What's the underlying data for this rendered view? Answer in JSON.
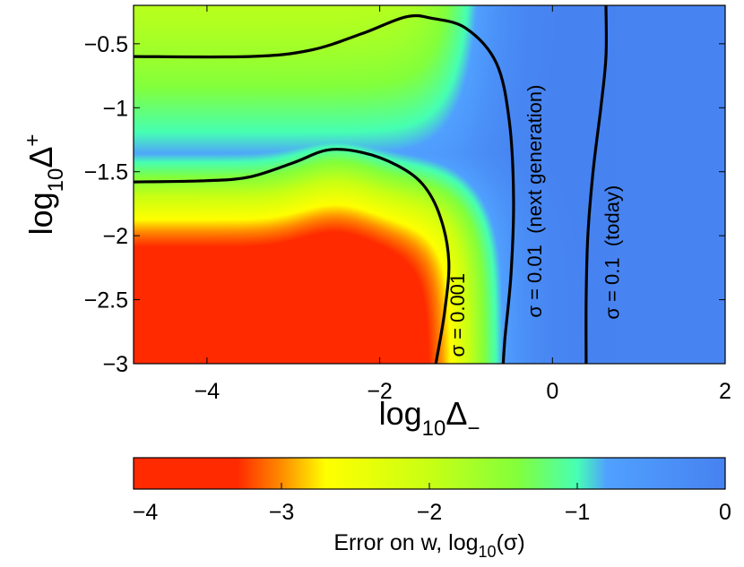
{
  "chart_data": {
    "type": "heatmap",
    "xlabel": {
      "base": "log",
      "sub": "10",
      "symbol": "Δ",
      "sup": "−"
    },
    "ylabel": {
      "base": "log",
      "sub": "10",
      "symbol": "Δ",
      "sup": "+"
    },
    "xlim": [
      -4.85,
      2
    ],
    "ylim": [
      -3,
      -0.2
    ],
    "x_ticks": [
      {
        "value": -4,
        "label": "−4"
      },
      {
        "value": -2,
        "label": "−2"
      },
      {
        "value": 0,
        "label": "0"
      },
      {
        "value": 2,
        "label": "2"
      }
    ],
    "y_ticks": [
      {
        "value": -0.5,
        "label": "−0.5"
      },
      {
        "value": -1,
        "label": "−1"
      },
      {
        "value": -1.5,
        "label": "−1.5"
      },
      {
        "value": -2,
        "label": "−2"
      },
      {
        "value": -2.5,
        "label": "−2.5"
      },
      {
        "value": -3,
        "label": "−3"
      }
    ],
    "colorbar": {
      "range": [
        -4,
        0
      ],
      "label": {
        "prefix": "Error on w, log",
        "sub": "10",
        "suffix": "(σ)"
      },
      "ticks": [
        {
          "value": -4,
          "label": "−4"
        },
        {
          "value": -3,
          "label": "−3"
        },
        {
          "value": -2,
          "label": "−2"
        },
        {
          "value": -1,
          "label": "−1"
        },
        {
          "value": 0,
          "label": "0"
        }
      ],
      "stops": [
        {
          "value": -4.0,
          "color": "#ff2a00"
        },
        {
          "value": -3.3,
          "color": "#ff2a00"
        },
        {
          "value": -3.0,
          "color": "#ff8c00"
        },
        {
          "value": -2.7,
          "color": "#ffff00"
        },
        {
          "value": -2.0,
          "color": "#c8ff14"
        },
        {
          "value": -1.4,
          "color": "#82ff3c"
        },
        {
          "value": -1.0,
          "color": "#46ffb4"
        },
        {
          "value": -0.8,
          "color": "#50a0ff"
        },
        {
          "value": 0.0,
          "color": "#4682f0"
        }
      ]
    },
    "field": {
      "plateau": -3.9,
      "x_knee": -0.95,
      "x_width": 0.28,
      "y_knee": -1.68,
      "y_width": 0.24,
      "tail_min": -2.1,
      "tail_x": -0.95,
      "tail_x_width": 0.26,
      "tail_y": -1.15,
      "tail_y_width": 0.45,
      "blue_edge": 0.62,
      "blue_width": 0.09,
      "bump_x": -2.5,
      "bump_width": 0.55,
      "bump_height": 0.12
    },
    "contours": [
      {
        "name": "σ = 0.001",
        "value": 0.001,
        "points": [
          [
            -4.85,
            -1.58
          ],
          [
            -4.0,
            -1.57
          ],
          [
            -3.5,
            -1.54
          ],
          [
            -3.0,
            -1.43
          ],
          [
            -2.6,
            -1.33
          ],
          [
            -2.2,
            -1.35
          ],
          [
            -1.8,
            -1.45
          ],
          [
            -1.5,
            -1.6
          ],
          [
            -1.3,
            -1.85
          ],
          [
            -1.2,
            -2.2
          ],
          [
            -1.25,
            -2.6
          ],
          [
            -1.35,
            -3.0
          ]
        ]
      },
      {
        "name": "σ = 0.01 (next generation)",
        "value": 0.01,
        "points": [
          [
            -4.85,
            -0.6
          ],
          [
            -3.5,
            -0.6
          ],
          [
            -2.8,
            -0.55
          ],
          [
            -2.2,
            -0.42
          ],
          [
            -1.7,
            -0.29
          ],
          [
            -1.4,
            -0.3
          ],
          [
            -1.0,
            -0.38
          ],
          [
            -0.65,
            -0.65
          ],
          [
            -0.5,
            -1.1
          ],
          [
            -0.45,
            -1.7
          ],
          [
            -0.48,
            -2.3
          ],
          [
            -0.55,
            -2.8
          ],
          [
            -0.57,
            -3.0
          ]
        ]
      },
      {
        "name": "σ = 0.1 (today)",
        "value": 0.1,
        "points": [
          [
            0.62,
            -0.2
          ],
          [
            0.62,
            -0.6
          ],
          [
            0.56,
            -1.0
          ],
          [
            0.47,
            -1.5
          ],
          [
            0.41,
            -2.0
          ],
          [
            0.39,
            -2.5
          ],
          [
            0.39,
            -3.0
          ]
        ]
      }
    ],
    "annotations": [
      {
        "text": "σ = 0.001",
        "x": -1.02,
        "y": -2.62
      },
      {
        "text": "σ = 0.01  (next generation)",
        "x": -0.13,
        "y": -1.73
      },
      {
        "text": "σ = 0.1  (today)",
        "x": 0.77,
        "y": -2.13
      }
    ]
  }
}
